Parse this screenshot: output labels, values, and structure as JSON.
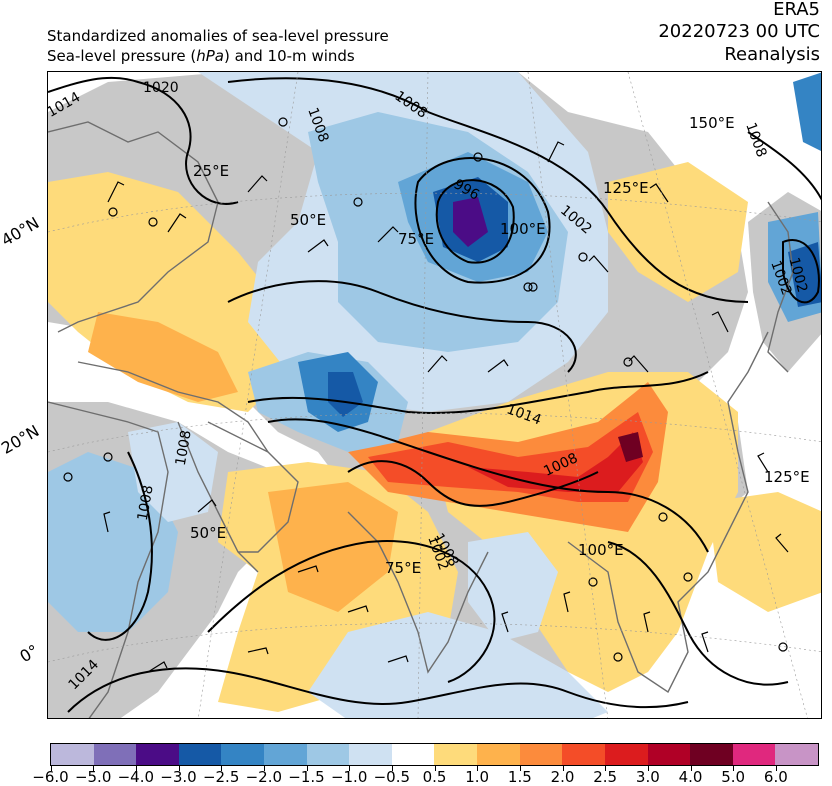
{
  "header": {
    "title_line1": "Standardized anomalies of sea-level pressure",
    "title_line2_pre": "Sea-level pressure (",
    "title_line2_unit": "hPa",
    "title_line2_post": ") and 10-m winds",
    "source": "ERA5",
    "datetime": "20220723 00 UTC",
    "product": "Reanalysis"
  },
  "map": {
    "type": "filled-contour-map",
    "projection": "conic",
    "latitude_labels": [
      "40°N",
      "20°N",
      "0°"
    ],
    "longitude_labels": [
      {
        "name": "lon-25e-top",
        "text": "25°E"
      },
      {
        "name": "lon-50e-top",
        "text": "50°E"
      },
      {
        "name": "lon-75e-top",
        "text": "75°E"
      },
      {
        "name": "lon-100e-top",
        "text": "100°E"
      },
      {
        "name": "lon-125e-top",
        "text": "125°E"
      },
      {
        "name": "lon-150e-top",
        "text": "150°E"
      },
      {
        "name": "lon-50e-bottom",
        "text": "50°E"
      },
      {
        "name": "lon-75e-bottom",
        "text": "75°E"
      },
      {
        "name": "lon-100e-bottom",
        "text": "100°E"
      },
      {
        "name": "lon-125e-bottom",
        "text": "125°E"
      }
    ],
    "isobar_labels": [
      {
        "name": "isobar-1014-nw",
        "text": "1014"
      },
      {
        "name": "isobar-1020",
        "text": "1020"
      },
      {
        "name": "isobar-1008-n",
        "text": "1008"
      },
      {
        "name": "isobar-1008-arc",
        "text": "1008"
      },
      {
        "name": "isobar-1002-north",
        "text": "1002"
      },
      {
        "name": "isobar-1008-ne",
        "text": "1008"
      },
      {
        "name": "isobar-996",
        "text": "996"
      },
      {
        "name": "isobar-1002-east",
        "text": "1002"
      },
      {
        "name": "isobar-1014-tibet",
        "text": "1014"
      },
      {
        "name": "isobar-1008-india",
        "text": "1008"
      },
      {
        "name": "isobar-1002-india",
        "text": "1002"
      },
      {
        "name": "isobar-1008-africa",
        "text": "1008"
      },
      {
        "name": "isobar-1008-red-sea",
        "text": "1008"
      },
      {
        "name": "isobar-1014-sw",
        "text": "1014"
      },
      {
        "name": "isobar-1008-ocean",
        "text": "1008"
      },
      {
        "name": "isobar-1002-japan",
        "text": "1002"
      }
    ],
    "low_center_anomaly_colors": {
      "strong_negative": "#4b0c86",
      "strong_positive": "#6f0022"
    }
  },
  "colorbar": {
    "levels": [
      "−6.0",
      "−5.0",
      "−4.0",
      "−3.0",
      "−2.5",
      "−2.0",
      "−1.5",
      "−1.0",
      "−0.5",
      "0.5",
      "1.0",
      "1.5",
      "2.0",
      "2.5",
      "3.0",
      "4.0",
      "5.0",
      "6.0"
    ],
    "colors": [
      "#bcb8dc",
      "#7f6fb8",
      "#4b0c86",
      "#1559a6",
      "#3484c4",
      "#62a5d6",
      "#9ec8e5",
      "#cfe1f2",
      "#ffffff",
      "#fedb7b",
      "#feb24c",
      "#fc8b3c",
      "#f44d28",
      "#dc1c1e",
      "#b00026",
      "#6f0022",
      "#e0287e",
      "#c894c6"
    ]
  }
}
